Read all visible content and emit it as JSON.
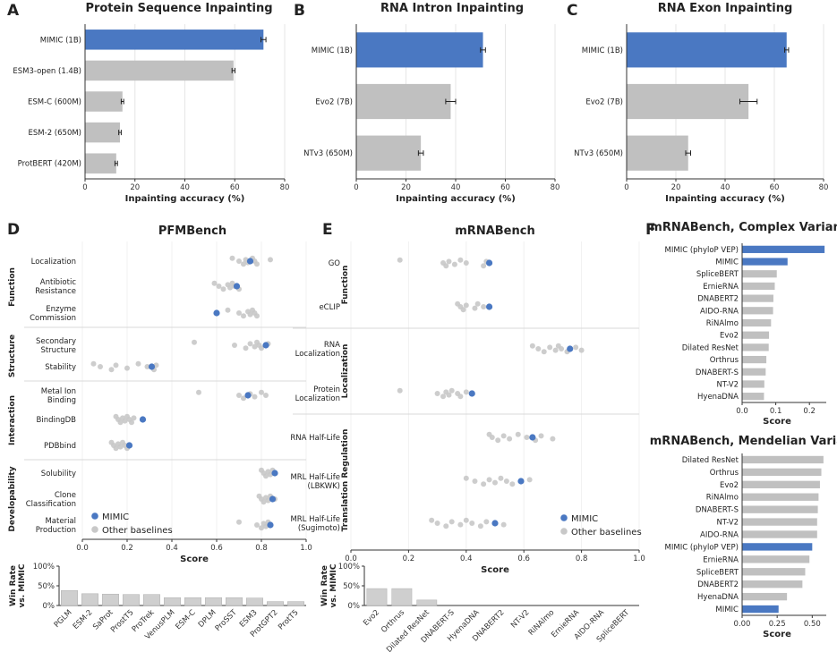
{
  "colors": {
    "mimic": "#4a78c2",
    "baseline": "#c0c0c0",
    "dot": "#c8c8c8",
    "grid": "#e6e6e6",
    "axis": "#333333"
  },
  "chart_data": [
    {
      "id": "A",
      "letter": "A",
      "type": "bar",
      "orientation": "horizontal",
      "title": "Protein Sequence Inpainting",
      "categories": [
        "MIMIC (1B)",
        "ESM3-open (1.4B)",
        "ESM-C (600M)",
        "ESM-2 (650M)",
        "ProtBERT (420M)"
      ],
      "values": [
        71.5,
        59.5,
        15,
        14,
        12.5
      ],
      "errors": [
        1,
        0.6,
        0.5,
        0.5,
        0.5
      ],
      "xlabel": "Inpainting accuracy (%)",
      "xlim": [
        0,
        80
      ],
      "xticks": [
        0,
        20,
        40,
        60,
        80
      ],
      "highlight": [
        0
      ]
    },
    {
      "id": "B",
      "letter": "B",
      "type": "bar",
      "orientation": "horizontal",
      "title": "RNA Intron Inpainting",
      "categories": [
        "MIMIC (1B)",
        "Evo2 (7B)",
        "NTv3 (650M)"
      ],
      "values": [
        51,
        38,
        26
      ],
      "errors": [
        1,
        2,
        1
      ],
      "xlabel": "Inpainting accuracy (%)",
      "xlim": [
        0,
        80
      ],
      "xticks": [
        0,
        20,
        40,
        60,
        80
      ],
      "highlight": [
        0
      ]
    },
    {
      "id": "C",
      "letter": "C",
      "type": "bar",
      "orientation": "horizontal",
      "title": "RNA Exon Inpainting",
      "categories": [
        "MIMIC (1B)",
        "Evo2 (7B)",
        "NTv3 (650M)"
      ],
      "values": [
        65,
        49.5,
        25
      ],
      "errors": [
        0.8,
        3.5,
        1
      ],
      "xlabel": "Inpainting accuracy (%)",
      "xlim": [
        0,
        80
      ],
      "xticks": [
        0,
        20,
        40,
        60,
        80
      ],
      "highlight": [
        0
      ]
    },
    {
      "id": "D",
      "letter": "D",
      "type": "scatter",
      "title": "PFMBench",
      "xlabel": "Score",
      "xlim": [
        0,
        1
      ],
      "xticks": [
        "0.0",
        "0.2",
        "0.4",
        "0.6",
        "0.8",
        "1.0"
      ],
      "legend": [
        "MIMIC",
        "Other baselines"
      ],
      "groups": [
        {
          "name": "Function",
          "tasks": [
            {
              "label": "Localization",
              "mimic": 0.75,
              "others": [
                0.67,
                0.7,
                0.72,
                0.73,
                0.74,
                0.76,
                0.77,
                0.78,
                0.84
              ]
            },
            {
              "label": "Antibiotic\nResistance",
              "mimic": 0.69,
              "others": [
                0.59,
                0.61,
                0.63,
                0.65,
                0.66,
                0.67,
                0.68,
                0.7
              ]
            },
            {
              "label": "Enzyme\nCommission",
              "mimic": 0.6,
              "others": [
                0.65,
                0.7,
                0.72,
                0.74,
                0.75,
                0.76,
                0.77,
                0.78
              ]
            }
          ]
        },
        {
          "name": "Structure",
          "tasks": [
            {
              "label": "Secondary\nStructure",
              "mimic": 0.82,
              "others": [
                0.5,
                0.68,
                0.73,
                0.75,
                0.77,
                0.78,
                0.79,
                0.8,
                0.83
              ]
            },
            {
              "label": "Stability",
              "mimic": 0.31,
              "others": [
                0.05,
                0.08,
                0.13,
                0.15,
                0.2,
                0.25,
                0.29,
                0.32,
                0.33
              ]
            }
          ]
        },
        {
          "name": "Interaction",
          "tasks": [
            {
              "label": "Metal Ion\nBinding",
              "mimic": 0.74,
              "others": [
                0.52,
                0.7,
                0.72,
                0.75,
                0.77,
                0.8,
                0.82
              ]
            },
            {
              "label": "BindingDB",
              "mimic": 0.27,
              "others": [
                0.15,
                0.16,
                0.17,
                0.18,
                0.19,
                0.2,
                0.21,
                0.22,
                0.23
              ]
            },
            {
              "label": "PDBbind",
              "mimic": 0.21,
              "others": [
                0.13,
                0.14,
                0.15,
                0.16,
                0.17,
                0.18,
                0.19,
                0.2
              ]
            }
          ]
        },
        {
          "name": "Developability",
          "tasks": [
            {
              "label": "Solubility",
              "mimic": 0.86,
              "others": [
                0.8,
                0.81,
                0.82,
                0.83,
                0.84,
                0.85,
                0.86
              ]
            },
            {
              "label": "Clone\nClassification",
              "mimic": 0.85,
              "others": [
                0.79,
                0.8,
                0.81,
                0.82,
                0.83,
                0.84,
                0.86
              ]
            },
            {
              "label": "Material\nProduction",
              "mimic": 0.84,
              "others": [
                0.7,
                0.78,
                0.8,
                0.81,
                0.82,
                0.83,
                0.84
              ]
            }
          ]
        }
      ]
    },
    {
      "id": "E",
      "letter": "E",
      "type": "scatter",
      "title": "mRNABench",
      "xlabel": "Score",
      "xlim": [
        0,
        1
      ],
      "xticks": [
        "0.0",
        "0.2",
        "0.4",
        "0.6",
        "0.8",
        "1.0"
      ],
      "legend": [
        "MIMIC",
        "Other baselines"
      ],
      "groups": [
        {
          "name": "Function",
          "tasks": [
            {
              "label": "GO",
              "mimic": 0.48,
              "others": [
                0.17,
                0.32,
                0.33,
                0.34,
                0.36,
                0.38,
                0.4,
                0.46,
                0.47
              ]
            },
            {
              "label": "eCLIP",
              "mimic": 0.48,
              "others": [
                0.37,
                0.38,
                0.39,
                0.4,
                0.43,
                0.44,
                0.46
              ]
            }
          ]
        },
        {
          "name": "Localization",
          "tasks": [
            {
              "label": "RNA\nLocalization",
              "mimic": 0.76,
              "others": [
                0.63,
                0.65,
                0.67,
                0.69,
                0.71,
                0.72,
                0.73,
                0.75,
                0.78,
                0.8
              ]
            },
            {
              "label": "Protein\nLocalization",
              "mimic": 0.42,
              "others": [
                0.17,
                0.3,
                0.32,
                0.33,
                0.34,
                0.35,
                0.37,
                0.38,
                0.4
              ]
            }
          ]
        },
        {
          "name": "Translation Regulation",
          "tasks": [
            {
              "label": "RNA Half-Life",
              "mimic": 0.63,
              "others": [
                0.48,
                0.49,
                0.51,
                0.53,
                0.55,
                0.58,
                0.61,
                0.64,
                0.66,
                0.7
              ]
            },
            {
              "label": "MRL Half-Life\n(LBKWK)",
              "mimic": 0.59,
              "others": [
                0.4,
                0.43,
                0.46,
                0.48,
                0.5,
                0.52,
                0.54,
                0.56,
                0.62
              ]
            },
            {
              "label": "MRL Half-Life\n(Sugimoto)",
              "mimic": 0.5,
              "others": [
                0.28,
                0.3,
                0.33,
                0.35,
                0.38,
                0.4,
                0.42,
                0.45,
                0.47,
                0.53
              ]
            }
          ]
        }
      ]
    },
    {
      "id": "Dwin",
      "type": "bar",
      "ylabel": "Win Rate\nvs. MIMIC",
      "yticks": [
        "0%",
        "50%",
        "100%"
      ],
      "ylim": [
        0,
        100
      ],
      "categories": [
        "PGLM",
        "ESM-2",
        "SaProt",
        "ProstT5",
        "ProTrek",
        "VenusPLM",
        "ESM-C",
        "DPLM",
        "ProSST",
        "ESM3",
        "ProtGPT2",
        "ProtT5"
      ],
      "values": [
        38,
        30,
        29,
        28,
        28,
        20,
        20,
        20,
        20,
        19,
        10,
        10
      ]
    },
    {
      "id": "Ewin",
      "type": "bar",
      "ylabel": "Win Rate\nvs. MIMIC",
      "yticks": [
        "0%",
        "50%",
        "100%"
      ],
      "ylim": [
        0,
        100
      ],
      "categories": [
        "Evo2",
        "Orthrus",
        "Dilated ResNet",
        "DNABERT-S",
        "HyenaDNA",
        "DNABERT2",
        "NT-V2",
        "RiNAlmo",
        "ErnieRNA",
        "AIDO-RNA",
        "SpliceBERT"
      ],
      "values": [
        43,
        43,
        14,
        0,
        0,
        0,
        0,
        0,
        0,
        0,
        0
      ]
    },
    {
      "id": "F1",
      "letter": "F",
      "type": "bar",
      "orientation": "horizontal",
      "title": "mRNABench, Complex Variants",
      "categories": [
        "MIMIC (phyloP VEP)",
        "MIMIC",
        "SpliceBERT",
        "ErnieRNA",
        "DNABERT2",
        "AIDO-RNA",
        "RiNAlmo",
        "Evo2",
        "Dilated ResNet",
        "Orthrus",
        "DNABERT-S",
        "NT-V2",
        "HyenaDNA"
      ],
      "values": [
        0.245,
        0.135,
        0.103,
        0.097,
        0.093,
        0.092,
        0.086,
        0.08,
        0.079,
        0.072,
        0.07,
        0.066,
        0.065
      ],
      "xlabel": "Score",
      "xlim": [
        0,
        0.25
      ],
      "xticks": [
        "0.0",
        "0.1",
        "0.2"
      ],
      "xtickvals": [
        0,
        0.1,
        0.2
      ],
      "highlight": [
        0,
        1
      ]
    },
    {
      "id": "F2",
      "type": "bar",
      "orientation": "horizontal",
      "title": "mRNABench, Mendelian Variants",
      "categories": [
        "Dilated ResNet",
        "Orthrus",
        "Evo2",
        "RiNAlmo",
        "DNABERT-S",
        "NT-V2",
        "AIDO-RNA",
        "MIMIC (phyloP VEP)",
        "ErnieRNA",
        "SpliceBERT",
        "DNABERT2",
        "HyenaDNA",
        "MIMIC"
      ],
      "values": [
        0.58,
        0.565,
        0.555,
        0.545,
        0.54,
        0.535,
        0.535,
        0.5,
        0.48,
        0.45,
        0.43,
        0.32,
        0.26
      ],
      "xlabel": "Score",
      "xlim": [
        0,
        0.6
      ],
      "xticks": [
        "0.00",
        "0.25",
        "0.50"
      ],
      "xtickvals": [
        0,
        0.25,
        0.5
      ],
      "highlight": [
        7,
        12
      ]
    }
  ]
}
